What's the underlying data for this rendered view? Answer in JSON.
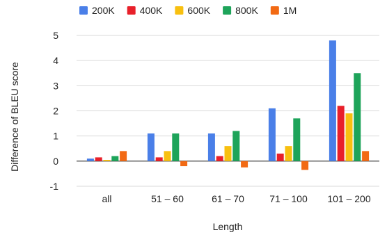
{
  "chart_data": {
    "type": "bar",
    "title": "",
    "xlabel": "Length",
    "ylabel": "Difference of BLEU score",
    "categories": [
      "all",
      "51 – 60",
      "61 – 70",
      "71 – 100",
      "101 – 200"
    ],
    "ylim": [
      -1,
      5
    ],
    "yticks": [
      "-1",
      "0",
      "1",
      "2",
      "3",
      "4",
      "5"
    ],
    "grid": true,
    "legend_position": "top",
    "series": [
      {
        "name": "200K",
        "color": "#4A7FE8",
        "values": [
          0.1,
          1.1,
          1.1,
          2.1,
          4.8
        ]
      },
      {
        "name": "400K",
        "color": "#E8202A",
        "values": [
          0.15,
          0.15,
          0.2,
          0.3,
          2.2
        ]
      },
      {
        "name": "600K",
        "color": "#F8C010",
        "values": [
          0.05,
          0.4,
          0.6,
          0.6,
          1.9
        ]
      },
      {
        "name": "800K",
        "color": "#1EA45A",
        "values": [
          0.2,
          1.1,
          1.2,
          1.7,
          3.5
        ]
      },
      {
        "name": "1M",
        "color": "#F26A14",
        "values": [
          0.4,
          -0.2,
          -0.25,
          -0.35,
          0.4
        ]
      }
    ]
  }
}
